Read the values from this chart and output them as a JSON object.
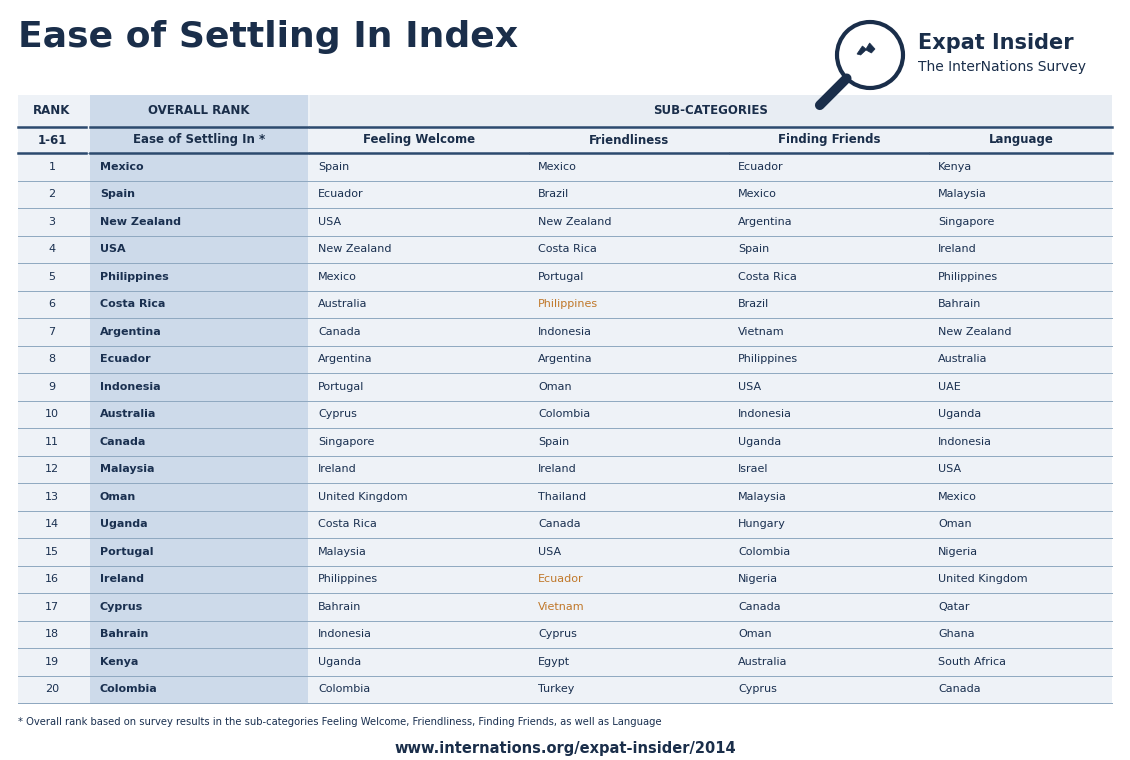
{
  "title": "Ease of Settling In Index",
  "background_color": "#ffffff",
  "table_bg": "#eef2f7",
  "overall_rank_bg": "#cddaea",
  "subcats_header_bg": "#e8edf3",
  "header_text_color": "#1a2e4a",
  "body_text_color": "#1a3050",
  "rank_text_color": "#1a3050",
  "footnote": "* Overall rank based on survey results in the sub-categories Feeling Welcome, Friendliness, Finding Friends, as well as Language",
  "website": "www.internations.org/expat-insider/2014",
  "ranks": [
    1,
    2,
    3,
    4,
    5,
    6,
    7,
    8,
    9,
    10,
    11,
    12,
    13,
    14,
    15,
    16,
    17,
    18,
    19,
    20
  ],
  "overall": [
    "Mexico",
    "Spain",
    "New Zealand",
    "USA",
    "Philippines",
    "Costa Rica",
    "Argentina",
    "Ecuador",
    "Indonesia",
    "Australia",
    "Canada",
    "Malaysia",
    "Oman",
    "Uganda",
    "Portugal",
    "Ireland",
    "Cyprus",
    "Bahrain",
    "Kenya",
    "Colombia"
  ],
  "feeling_welcome": [
    "Spain",
    "Ecuador",
    "USA",
    "New Zealand",
    "Mexico",
    "Australia",
    "Canada",
    "Argentina",
    "Portugal",
    "Cyprus",
    "Singapore",
    "Ireland",
    "United Kingdom",
    "Costa Rica",
    "Malaysia",
    "Philippines",
    "Bahrain",
    "Indonesia",
    "Uganda",
    "Colombia"
  ],
  "friendliness": [
    "Mexico",
    "Brazil",
    "New Zealand",
    "Costa Rica",
    "Portugal",
    "Philippines",
    "Indonesia",
    "Argentina",
    "Oman",
    "Colombia",
    "Spain",
    "Ireland",
    "Thailand",
    "Canada",
    "USA",
    "Ecuador",
    "Vietnam",
    "Cyprus",
    "Egypt",
    "Turkey"
  ],
  "friendliness_highlight": [
    false,
    false,
    false,
    false,
    false,
    true,
    false,
    false,
    false,
    false,
    false,
    false,
    false,
    false,
    false,
    true,
    true,
    false,
    false,
    false
  ],
  "finding_friends": [
    "Ecuador",
    "Mexico",
    "Argentina",
    "Spain",
    "Costa Rica",
    "Brazil",
    "Vietnam",
    "Philippines",
    "USA",
    "Indonesia",
    "Uganda",
    "Israel",
    "Malaysia",
    "Hungary",
    "Colombia",
    "Nigeria",
    "Canada",
    "Oman",
    "Australia",
    "Cyprus"
  ],
  "language": [
    "Kenya",
    "Malaysia",
    "Singapore",
    "Ireland",
    "Philippines",
    "Bahrain",
    "New Zealand",
    "Australia",
    "UAE",
    "Uganda",
    "Indonesia",
    "USA",
    "Mexico",
    "Oman",
    "Nigeria",
    "United Kingdom",
    "Qatar",
    "Ghana",
    "South Africa",
    "Canada"
  ]
}
